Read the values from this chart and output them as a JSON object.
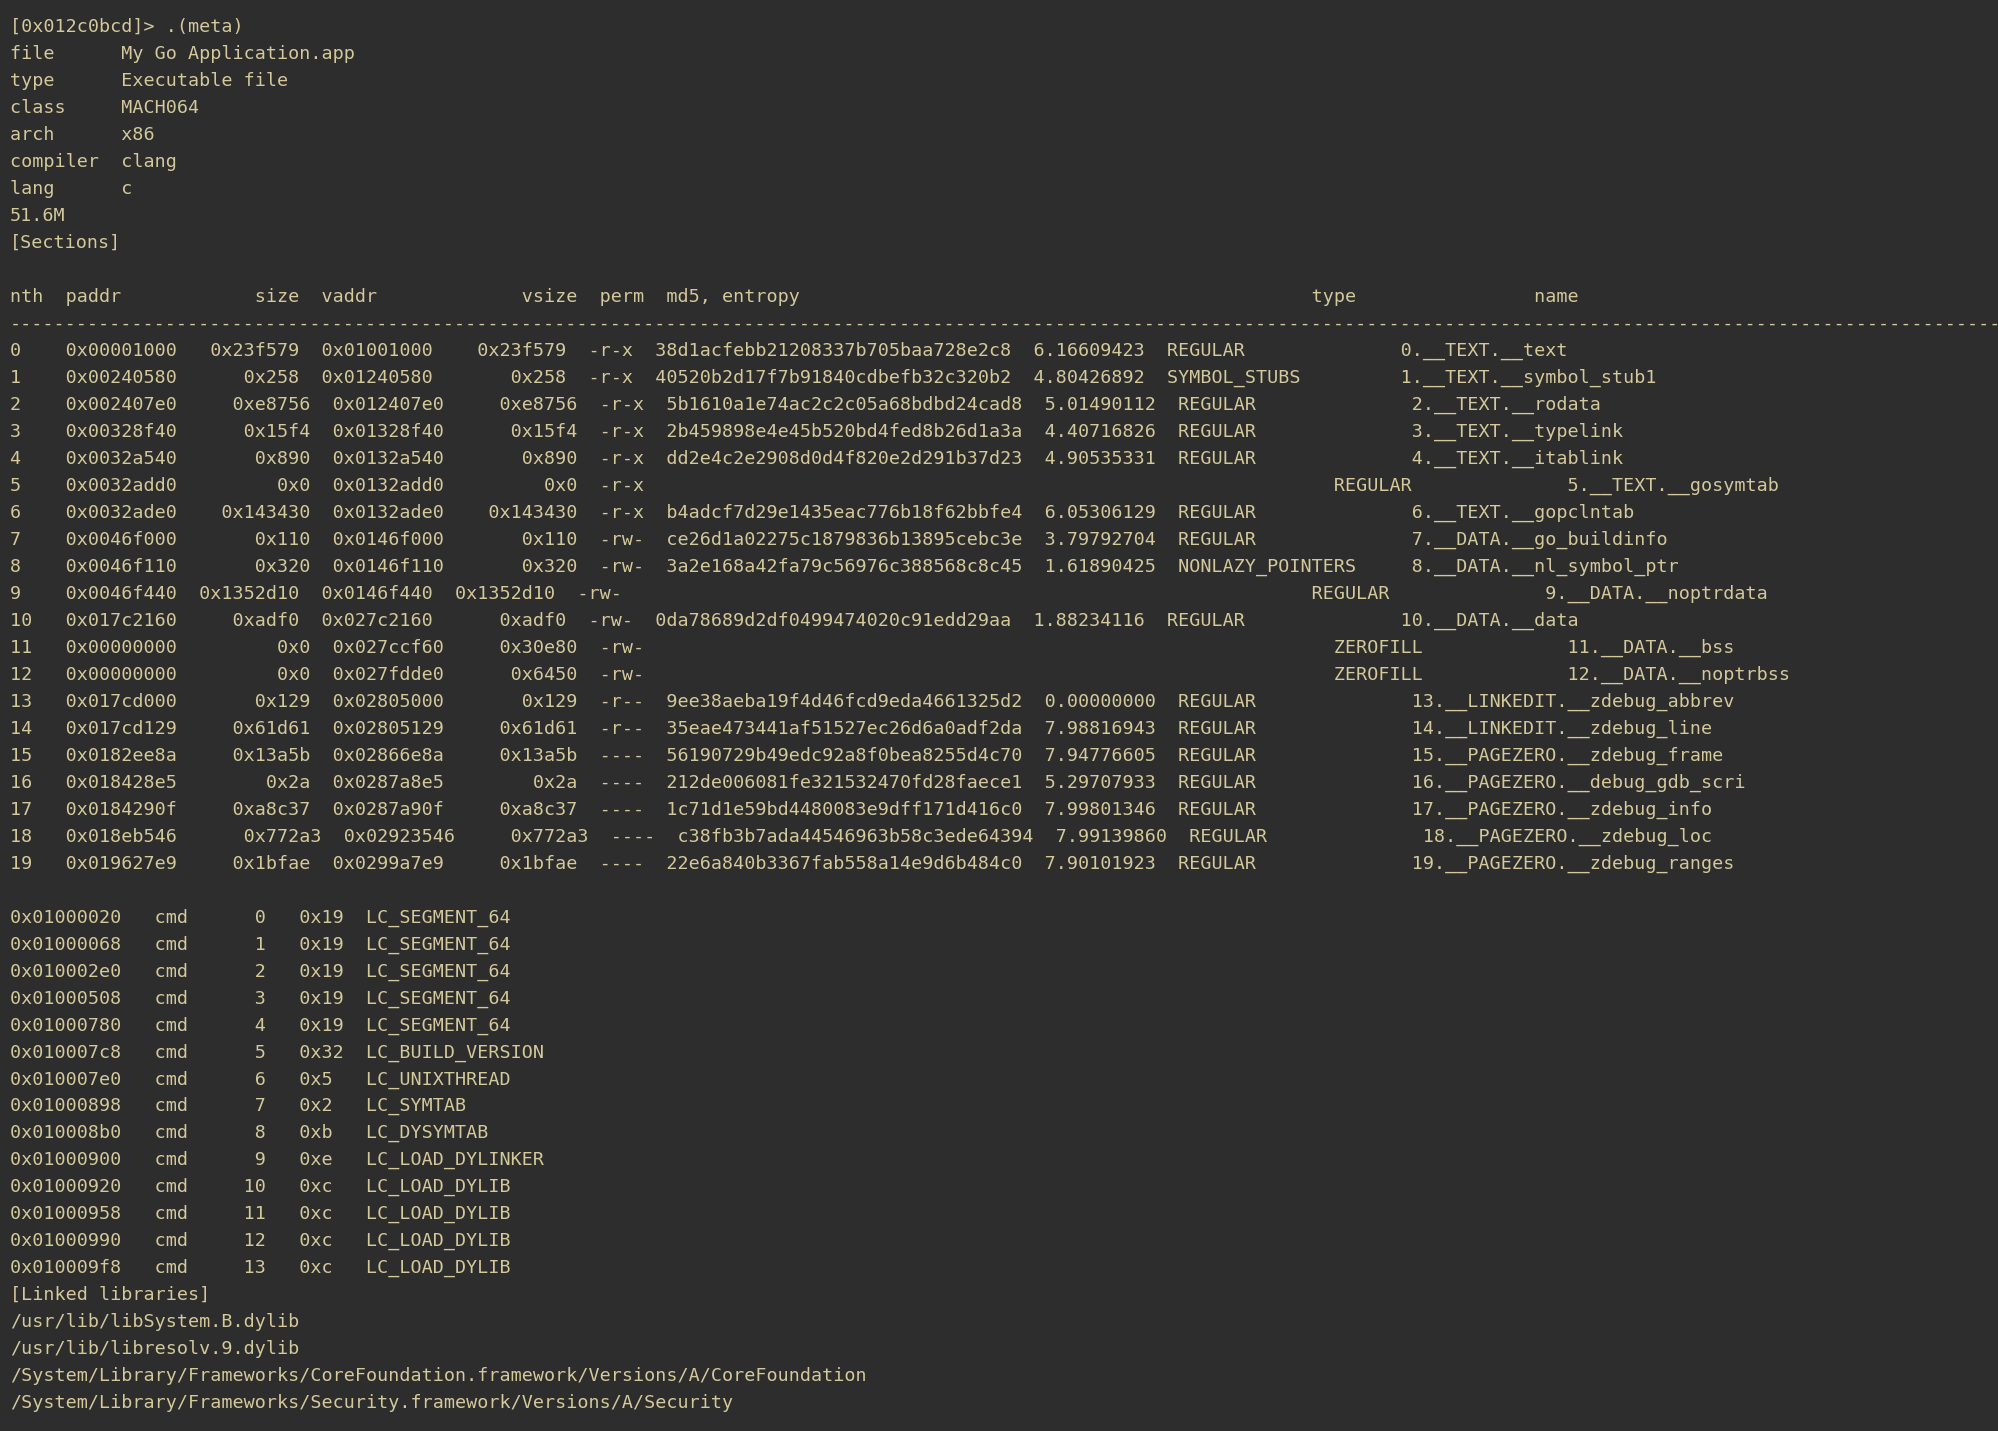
{
  "bg_color": "#2d2d2d",
  "text_color": "#d4c99a",
  "font_size": 13.2,
  "figwidth": 19.99,
  "figheight": 14.31,
  "dpi": 100,
  "lines": [
    "[0x012c0bcd]> .(meta)",
    "file      My Go Application.app",
    "type      Executable file",
    "class     MACH064",
    "arch      x86",
    "compiler  clang",
    "lang      c",
    "51.6M",
    "[Sections]",
    "",
    "nth  paddr            size  vaddr             vsize  perm  md5, entropy                                              type                name",
    "----------------------------------------------------------------------------------------------------------------------------------------------------------------------------------------------------",
    "0    0x00001000   0x23f579  0x01001000    0x23f579  -r-x  38d1acfebb21208337b705baa728e2c8  6.16609423  REGULAR              0.__TEXT.__text",
    "1    0x00240580      0x258  0x01240580       0x258  -r-x  40520b2d17f7b91840cdbefb32c320b2  4.80426892  SYMBOL_STUBS         1.__TEXT.__symbol_stub1",
    "2    0x002407e0     0xe8756  0x012407e0     0xe8756  -r-x  5b1610a1e74ac2c2c05a68bdbd24cad8  5.01490112  REGULAR              2.__TEXT.__rodata",
    "3    0x00328f40      0x15f4  0x01328f40      0x15f4  -r-x  2b459898e4e45b520bd4fed8b26d1a3a  4.40716826  REGULAR              3.__TEXT.__typelink",
    "4    0x0032a540       0x890  0x0132a540       0x890  -r-x  dd2e4c2e2908d0d4f820e2d291b37d23  4.90535331  REGULAR              4.__TEXT.__itablink",
    "5    0x0032add0         0x0  0x0132add0         0x0  -r-x                                                              REGULAR              5.__TEXT.__gosymtab",
    "6    0x0032ade0    0x143430  0x0132ade0    0x143430  -r-x  b4adcf7d29e1435eac776b18f62bbfe4  6.05306129  REGULAR              6.__TEXT.__gopclntab",
    "7    0x0046f000       0x110  0x0146f000       0x110  -rw-  ce26d1a02275c1879836b13895cebc3e  3.79792704  REGULAR              7.__DATA.__go_buildinfo",
    "8    0x0046f110       0x320  0x0146f110       0x320  -rw-  3a2e168a42fa79c56976c388568c8c45  1.61890425  NONLAZY_POINTERS     8.__DATA.__nl_symbol_ptr",
    "9    0x0046f440  0x1352d10  0x0146f440  0x1352d10  -rw-                                                              REGULAR              9.__DATA.__noptrdata",
    "10   0x017c2160     0xadf0  0x027c2160      0xadf0  -rw-  0da78689d2df0499474020c91edd29aa  1.88234116  REGULAR              10.__DATA.__data",
    "11   0x00000000         0x0  0x027ccf60     0x30e80  -rw-                                                              ZEROFILL             11.__DATA.__bss",
    "12   0x00000000         0x0  0x027fdde0      0x6450  -rw-                                                              ZEROFILL             12.__DATA.__noptrbss",
    "13   0x017cd000       0x129  0x02805000       0x129  -r--  9ee38aeba19f4d46fcd9eda4661325d2  0.00000000  REGULAR              13.__LINKEDIT.__zdebug_abbrev",
    "14   0x017cd129     0x61d61  0x02805129     0x61d61  -r--  35eae473441af51527ec26d6a0adf2da  7.98816943  REGULAR              14.__LINKEDIT.__zdebug_line",
    "15   0x0182ee8a     0x13a5b  0x02866e8a     0x13a5b  ----  56190729b49edc92a8f0bea8255d4c70  7.94776605  REGULAR              15.__PAGEZERO.__zdebug_frame",
    "16   0x018428e5        0x2a  0x0287a8e5        0x2a  ----  212de006081fe321532470fd28faece1  5.29707933  REGULAR              16.__PAGEZERO.__debug_gdb_scri",
    "17   0x0184290f     0xa8c37  0x0287a90f     0xa8c37  ----  1c71d1e59bd4480083e9dff171d416c0  7.99801346  REGULAR              17.__PAGEZERO.__zdebug_info",
    "18   0x018eb546      0x772a3  0x02923546     0x772a3  ----  c38fb3b7ada44546963b58c3ede64394  7.99139860  REGULAR              18.__PAGEZERO.__zdebug_loc",
    "19   0x019627e9     0x1bfae  0x0299a7e9     0x1bfae  ----  22e6a840b3367fab558a14e9d6b484c0  7.90101923  REGULAR              19.__PAGEZERO.__zdebug_ranges",
    "",
    "0x01000020   cmd      0   0x19  LC_SEGMENT_64",
    "0x01000068   cmd      1   0x19  LC_SEGMENT_64",
    "0x010002e0   cmd      2   0x19  LC_SEGMENT_64",
    "0x01000508   cmd      3   0x19  LC_SEGMENT_64",
    "0x01000780   cmd      4   0x19  LC_SEGMENT_64",
    "0x010007c8   cmd      5   0x32  LC_BUILD_VERSION",
    "0x010007e0   cmd      6   0x5   LC_UNIXTHREAD",
    "0x01000898   cmd      7   0x2   LC_SYMTAB",
    "0x010008b0   cmd      8   0xb   LC_DYSYMTAB",
    "0x01000900   cmd      9   0xe   LC_LOAD_DYLINKER",
    "0x01000920   cmd     10   0xc   LC_LOAD_DYLIB",
    "0x01000958   cmd     11   0xc   LC_LOAD_DYLIB",
    "0x01000990   cmd     12   0xc   LC_LOAD_DYLIB",
    "0x010009f8   cmd     13   0xc   LC_LOAD_DYLIB",
    "[Linked libraries]",
    "/usr/lib/libSystem.B.dylib",
    "/usr/lib/libresolv.9.dylib",
    "/System/Library/Frameworks/CoreFoundation.framework/Versions/A/CoreFoundation",
    "/System/Library/Frameworks/Security.framework/Versions/A/Security"
  ]
}
